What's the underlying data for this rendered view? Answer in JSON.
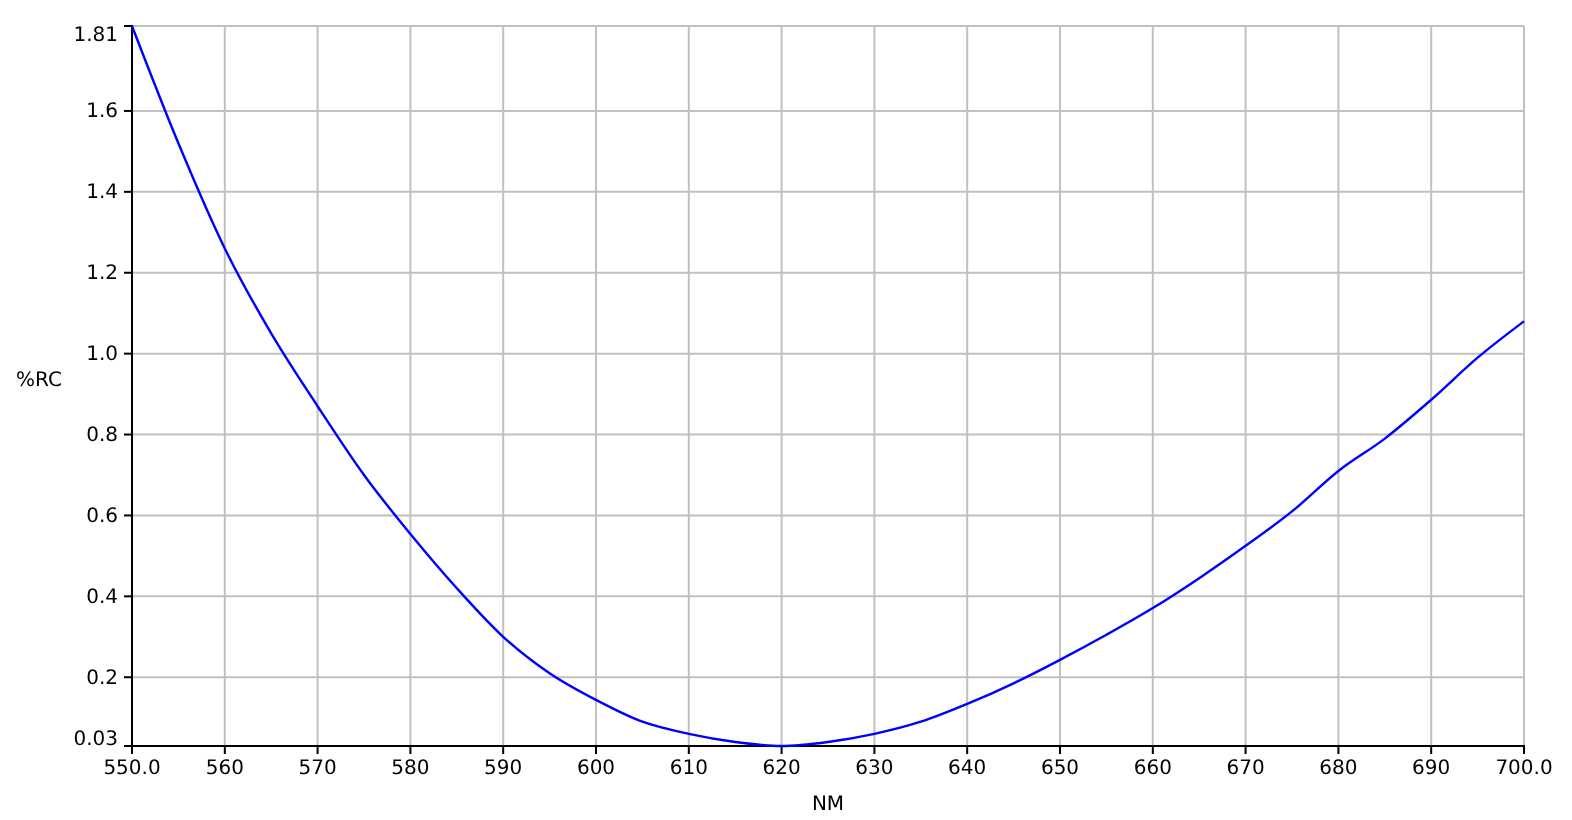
{
  "chart_data": {
    "type": "line",
    "xlabel": "NM",
    "ylabel": "%RC",
    "x": [
      550,
      555,
      560,
      565,
      570,
      575,
      580,
      585,
      590,
      595,
      600,
      605,
      610,
      615,
      620,
      625,
      630,
      635,
      640,
      645,
      650,
      655,
      660,
      665,
      670,
      675,
      680,
      685,
      690,
      695,
      700
    ],
    "series": [
      {
        "color": "#0000ff",
        "values": [
          1.81,
          1.52,
          1.26,
          1.05,
          0.87,
          0.7,
          0.554,
          0.42,
          0.3,
          0.21,
          0.144,
          0.09,
          0.06,
          0.04,
          0.03,
          0.04,
          0.06,
          0.09,
          0.134,
          0.185,
          0.243,
          0.305,
          0.371,
          0.445,
          0.525,
          0.61,
          0.71,
          0.79,
          0.886,
          0.99,
          1.08
        ]
      }
    ],
    "xlim": [
      550,
      700
    ],
    "xticks": [
      {
        "value": 550,
        "label": "550.0"
      },
      560,
      570,
      580,
      590,
      600,
      610,
      620,
      630,
      640,
      650,
      660,
      670,
      680,
      690,
      {
        "value": 700,
        "label": "700.0"
      }
    ],
    "ylim": [
      0.03,
      1.81
    ],
    "yticks": [
      0.03,
      {
        "value": 0.2,
        "label": "0.2"
      },
      {
        "value": 0.4,
        "label": "0.4"
      },
      {
        "value": 0.6,
        "label": "0.6"
      },
      {
        "value": 0.8,
        "label": "0.8"
      },
      {
        "value": 1.0,
        "label": "1.0"
      },
      {
        "value": 1.2,
        "label": "1.2"
      },
      {
        "value": 1.4,
        "label": "1.4"
      },
      {
        "value": 1.6,
        "label": "1.6"
      },
      1.81
    ],
    "grid": true,
    "line_style": "solid",
    "marker": "none"
  }
}
